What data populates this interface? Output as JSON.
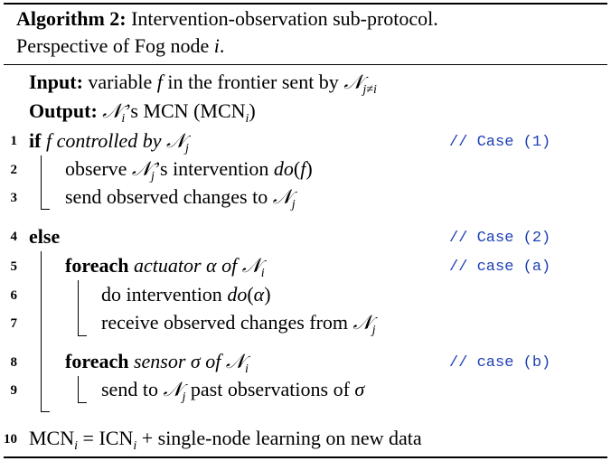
{
  "caption": {
    "label": "Algorithm 2:",
    "line1": "Intervention-observation sub-protocol.",
    "line2_prefix": "Perspective of Fog node ",
    "line2_var": "i",
    "line2_suffix": "."
  },
  "io": {
    "input_label": "Input:",
    "input_text": "variable",
    "input_var": "f",
    "input_tail": "in the frontier sent by",
    "output_label": "Output:",
    "output_tail": "’s MCN (MCN",
    "output_close": ")"
  },
  "lines": [
    {
      "num": "1",
      "kw": "if",
      "var": "f",
      "it": "controlled by",
      "comment": "// Case (1)"
    },
    {
      "num": "2",
      "text_a": "observe",
      "text_b": "’s intervention",
      "fn": "do",
      "arg": "f"
    },
    {
      "num": "3",
      "text": "send observed changes to"
    },
    {
      "num": "4",
      "kw": "else",
      "comment": "// Case (2)"
    },
    {
      "num": "5",
      "kw": "foreach",
      "it_a": "actuator",
      "sym": "α",
      "it_b": "of",
      "comment": "// case (a)"
    },
    {
      "num": "6",
      "text": "do intervention",
      "fn": "do",
      "arg": "α"
    },
    {
      "num": "7",
      "text": "receive observed changes from"
    },
    {
      "num": "8",
      "kw": "foreach",
      "it_a": "sensor",
      "sym": "σ",
      "it_b": "of",
      "comment": "// case (b)"
    },
    {
      "num": "9",
      "text_a": "send to",
      "text_b": "past observations of",
      "sym": "σ"
    },
    {
      "num": "10",
      "lhs": "MCN",
      "eq": "=",
      "icn": "ICN",
      "tail": "+ single-node learning on new data"
    }
  ],
  "symbols": {
    "node": "𝒩",
    "sub_j": "j",
    "sub_i": "i",
    "sub_jneqi": "j≠i"
  }
}
